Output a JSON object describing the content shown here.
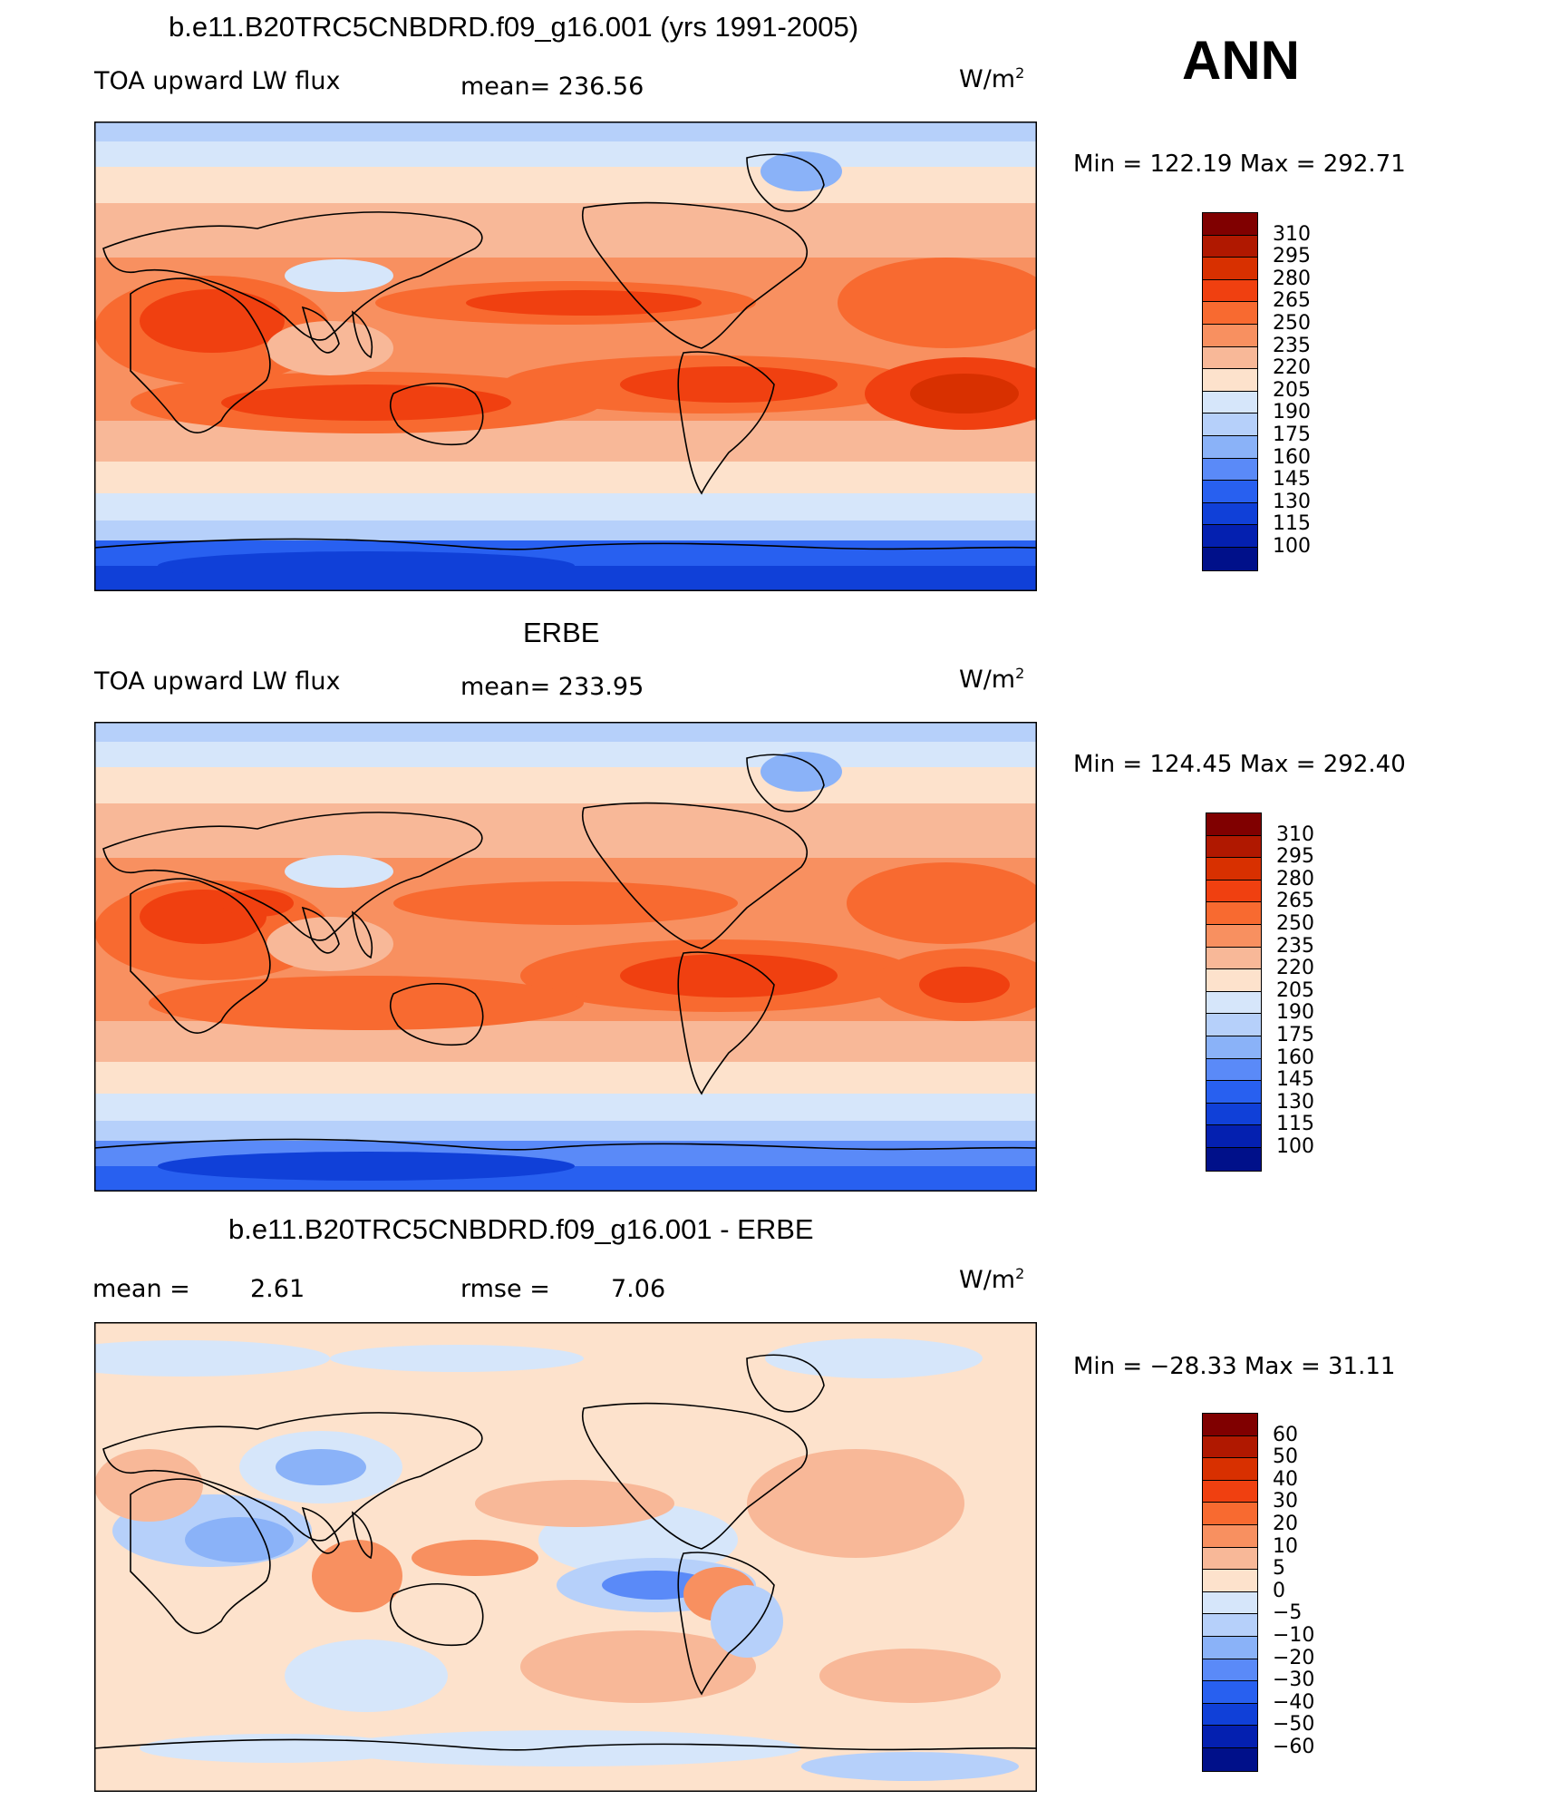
{
  "header": {
    "ann": "ANN",
    "case_title": "b.e11.B20TRC5CNBDRD.f09_g16.001 (yrs 1991-2005)"
  },
  "colors": {
    "ocean_bg": "#f7b393",
    "land_outline": "#000000"
  },
  "panels": [
    {
      "id": "model",
      "title": "",
      "variable": "TOA upward LW flux",
      "mean_text": "mean= 236.56",
      "units_base": "W/m",
      "units_sup": "2",
      "minmax_text": "Min  =  122.19  Max  =  292.71",
      "colorbar": {
        "labels": [
          "310",
          "295",
          "280",
          "265",
          "250",
          "235",
          "220",
          "205",
          "190",
          "175",
          "160",
          "145",
          "130",
          "115",
          "100"
        ],
        "colors": [
          "#800000",
          "#b01800",
          "#d83000",
          "#f04010",
          "#f86a30",
          "#f89060",
          "#f8b898",
          "#fde2cc",
          "#d6e6fa",
          "#b6d0fa",
          "#8ab2f8",
          "#5a8af8",
          "#2860f0",
          "#1040d8",
          "#0420b0",
          "#00108a"
        ]
      },
      "map_fill": "warm_model"
    },
    {
      "id": "obs",
      "title": "ERBE",
      "variable": "TOA upward LW flux",
      "mean_text": "mean= 233.95",
      "units_base": "W/m",
      "units_sup": "2",
      "minmax_text": "Min  =  124.45  Max  =  292.40",
      "colorbar": {
        "labels": [
          "310",
          "295",
          "280",
          "265",
          "250",
          "235",
          "220",
          "205",
          "190",
          "175",
          "160",
          "145",
          "130",
          "115",
          "100"
        ],
        "colors": [
          "#800000",
          "#b01800",
          "#d83000",
          "#f04010",
          "#f86a30",
          "#f89060",
          "#f8b898",
          "#fde2cc",
          "#d6e6fa",
          "#b6d0fa",
          "#8ab2f8",
          "#5a8af8",
          "#2860f0",
          "#1040d8",
          "#0420b0",
          "#00108a"
        ]
      },
      "map_fill": "warm_obs"
    },
    {
      "id": "diff",
      "title": "b.e11.B20TRC5CNBDRD.f09_g16.001 - ERBE",
      "variable": "",
      "mean_label": "mean  =",
      "mean_value": "2.61",
      "rmse_label": "rmse  =",
      "rmse_value": "7.06",
      "units_base": "W/m",
      "units_sup": "2",
      "minmax_text": "Min  =  −28.33  Max  =    31.11",
      "colorbar": {
        "labels": [
          "60",
          "50",
          "40",
          "30",
          "20",
          "10",
          "5",
          "0",
          "−5",
          "−10",
          "−20",
          "−30",
          "−40",
          "−50",
          "−60"
        ],
        "colors": [
          "#800000",
          "#b01800",
          "#d83000",
          "#f04010",
          "#f86a30",
          "#f89060",
          "#f8b898",
          "#fde2cc",
          "#d6e6fa",
          "#b6d0fa",
          "#8ab2f8",
          "#5a8af8",
          "#2860f0",
          "#1040d8",
          "#0420b0",
          "#00108a"
        ]
      },
      "map_fill": "diff"
    }
  ]
}
